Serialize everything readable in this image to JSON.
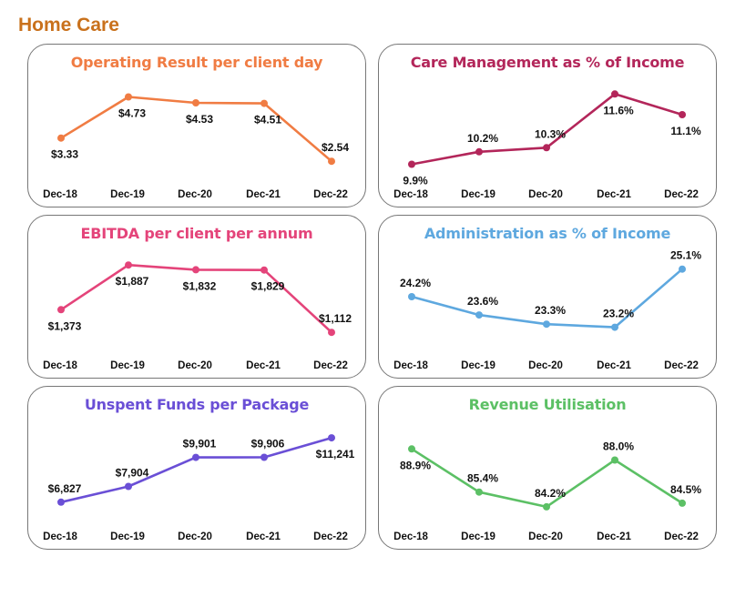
{
  "page": {
    "title": "Home Care"
  },
  "chart_data": [
    {
      "type": "line",
      "title": "Operating Result per client day",
      "color": "#f07c43",
      "categories": [
        "Dec-18",
        "Dec-19",
        "Dec-20",
        "Dec-21",
        "Dec-22"
      ],
      "values": [
        3.33,
        4.73,
        4.53,
        4.51,
        2.54
      ],
      "data_labels": [
        "$3.33",
        "$4.73",
        "$4.53",
        "$4.51",
        "$2.54"
      ],
      "label_positions": [
        "below",
        "below",
        "below",
        "below",
        "above"
      ],
      "ylim": [
        2.3,
        4.9
      ]
    },
    {
      "type": "line",
      "title": "Care Management as % of Income",
      "color": "#b3265a",
      "categories": [
        "Dec-18",
        "Dec-19",
        "Dec-20",
        "Dec-21",
        "Dec-22"
      ],
      "values": [
        9.9,
        10.2,
        10.3,
        11.6,
        11.1
      ],
      "data_labels": [
        "9.9%",
        "10.2%",
        "10.3%",
        "11.6%",
        "11.1%"
      ],
      "label_positions": [
        "below",
        "above",
        "above",
        "below",
        "below"
      ],
      "ylim": [
        9.8,
        11.65
      ]
    },
    {
      "type": "line",
      "title": "EBITDA per client per annum",
      "color": "#e4447a",
      "categories": [
        "Dec-18",
        "Dec-19",
        "Dec-20",
        "Dec-21",
        "Dec-22"
      ],
      "values": [
        1373,
        1887,
        1832,
        1829,
        1112
      ],
      "data_labels": [
        "$1,373",
        "$1,887",
        "$1,832",
        "$1,829",
        "$1,112"
      ],
      "label_positions": [
        "below",
        "below",
        "below",
        "below",
        "above"
      ],
      "ylim": [
        1030,
        1910
      ]
    },
    {
      "type": "line",
      "title": "Administration as % of Income",
      "color": "#5ea8df",
      "categories": [
        "Dec-18",
        "Dec-19",
        "Dec-20",
        "Dec-21",
        "Dec-22"
      ],
      "values": [
        24.2,
        23.6,
        23.3,
        23.2,
        25.1
      ],
      "data_labels": [
        "24.2%",
        "23.6%",
        "23.3%",
        "23.2%",
        "25.1%"
      ],
      "label_positions": [
        "above",
        "above",
        "above",
        "above",
        "above"
      ],
      "ylim": [
        22.8,
        25.3
      ]
    },
    {
      "type": "line",
      "title": "Unspent Funds per Package",
      "color": "#6a4fd6",
      "categories": [
        "Dec-18",
        "Dec-19",
        "Dec-20",
        "Dec-21",
        "Dec-22"
      ],
      "values": [
        6827,
        7904,
        9901,
        9906,
        11241
      ],
      "data_labels": [
        "$6,827",
        "$7,904",
        "$9,901",
        "$9,906",
        "$11,241"
      ],
      "label_positions": [
        "above",
        "above",
        "above",
        "above",
        "below"
      ],
      "ylim": [
        6250,
        11500
      ]
    },
    {
      "type": "line",
      "title": "Revenue Utilisation",
      "color": "#5cc065",
      "categories": [
        "Dec-18",
        "Dec-19",
        "Dec-20",
        "Dec-21",
        "Dec-22"
      ],
      "values": [
        88.9,
        85.4,
        84.2,
        88.0,
        84.5
      ],
      "data_labels": [
        "88.9%",
        "85.4%",
        "84.2%",
        "88.0%",
        "84.5%"
      ],
      "label_positions": [
        "below",
        "above",
        "above",
        "above",
        "above"
      ],
      "ylim": [
        83.9,
        90.1
      ]
    }
  ]
}
